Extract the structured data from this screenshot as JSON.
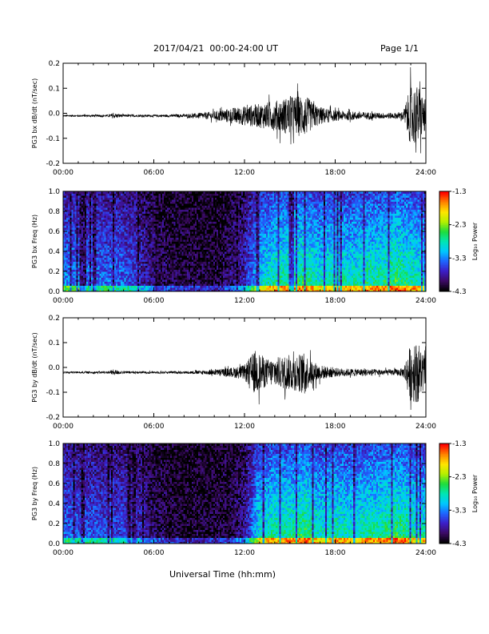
{
  "header": {
    "title": "2017/04/21  00:00-24:00 UT",
    "page": "Page 1/1"
  },
  "x_axis_title": "Universal Time (hh:mm)",
  "colorbar": {
    "title": "Log₁₀ Power",
    "tick_labels": [
      "-1.3",
      "-2.3",
      "-3.3",
      "-4.3"
    ],
    "range": [
      -4.3,
      -1.3
    ],
    "colors": [
      "#000000",
      "#3c0a64",
      "#3c1ec8",
      "#1e64ff",
      "#00c8ff",
      "#00e6b4",
      "#1edc3c",
      "#b4f000",
      "#ffe600",
      "#ff8200",
      "#ff0000"
    ]
  },
  "chart_data": [
    {
      "type": "line",
      "ylabel": "PG3 bx dB/dt (nT/sec)",
      "x_ticks": [
        "00:00",
        "06:00",
        "12:00",
        "18:00",
        "24:00"
      ],
      "y_ticks": [
        "0.2",
        "0.1",
        "0.0",
        "-0.1",
        "-0.2"
      ],
      "xlim": [
        0,
        24
      ],
      "ylim": [
        -0.2,
        0.2
      ],
      "envelope_hours": [
        0,
        2,
        3,
        3.3,
        4,
        6,
        8,
        9,
        10,
        11,
        12,
        13,
        14,
        15,
        16,
        16.5,
        17,
        18,
        19,
        20,
        21,
        22,
        22.5,
        23,
        23.5,
        24
      ],
      "envelope_amp": [
        0.006,
        0.007,
        0.008,
        0.018,
        0.008,
        0.007,
        0.01,
        0.018,
        0.03,
        0.05,
        0.065,
        0.08,
        0.1,
        0.13,
        0.14,
        0.09,
        0.06,
        0.035,
        0.03,
        0.025,
        0.02,
        0.02,
        0.03,
        0.2,
        0.2,
        0.1
      ],
      "offset": -0.01
    },
    {
      "type": "heatmap",
      "ylabel": "PG3 bx Freq (Hz)",
      "x_ticks": [
        "00:00",
        "06:00",
        "12:00",
        "18:00",
        "24:00"
      ],
      "y_ticks": [
        "1.0",
        "0.8",
        "0.6",
        "0.4",
        "0.2",
        "0.0"
      ],
      "xlim": [
        0,
        24
      ],
      "ylim": [
        0,
        1.0
      ],
      "zlim": [
        -4.3,
        -1.3
      ],
      "activity_hours": [
        0,
        4,
        5,
        6,
        8,
        10,
        11,
        12,
        13,
        14,
        15,
        16,
        17,
        18,
        19,
        20,
        21,
        22,
        23,
        24
      ],
      "activity_level": [
        0.35,
        0.3,
        0.22,
        0.12,
        0.06,
        0.05,
        0.1,
        0.2,
        0.45,
        0.55,
        0.55,
        0.58,
        0.5,
        0.55,
        0.5,
        0.55,
        0.55,
        0.6,
        0.55,
        0.5
      ]
    },
    {
      "type": "line",
      "ylabel": "PG3 by dB/dt (nT/sec)",
      "x_ticks": [
        "00:00",
        "06:00",
        "12:00",
        "18:00",
        "24:00"
      ],
      "y_ticks": [
        "0.2",
        "0.1",
        "0.0",
        "-0.1",
        "-0.2"
      ],
      "xlim": [
        0,
        24
      ],
      "ylim": [
        -0.2,
        0.2
      ],
      "envelope_hours": [
        0,
        2,
        3,
        3.3,
        4,
        6,
        8,
        9,
        10,
        11,
        12,
        12.7,
        13.5,
        14,
        15,
        16,
        16.5,
        17,
        18,
        19,
        20,
        21,
        22,
        22.5,
        23,
        23.5,
        24
      ],
      "envelope_amp": [
        0.006,
        0.007,
        0.008,
        0.02,
        0.008,
        0.007,
        0.008,
        0.012,
        0.018,
        0.03,
        0.05,
        0.15,
        0.09,
        0.1,
        0.12,
        0.13,
        0.08,
        0.05,
        0.03,
        0.025,
        0.025,
        0.02,
        0.02,
        0.03,
        0.2,
        0.2,
        0.1
      ],
      "offset": -0.02
    },
    {
      "type": "heatmap",
      "ylabel": "PG3 by Freq (Hz)",
      "x_ticks": [
        "00:00",
        "06:00",
        "12:00",
        "18:00",
        "24:00"
      ],
      "y_ticks": [
        "1.0",
        "0.8",
        "0.6",
        "0.4",
        "0.2",
        "0.0"
      ],
      "xlim": [
        0,
        24
      ],
      "ylim": [
        0,
        1.0
      ],
      "zlim": [
        -4.3,
        -1.3
      ],
      "activity_hours": [
        0,
        4,
        5,
        6,
        8,
        10,
        11,
        12,
        13,
        14,
        15,
        16,
        17,
        18,
        19,
        20,
        21,
        22,
        23,
        24
      ],
      "activity_level": [
        0.3,
        0.25,
        0.2,
        0.1,
        0.05,
        0.05,
        0.08,
        0.15,
        0.5,
        0.55,
        0.55,
        0.6,
        0.5,
        0.55,
        0.5,
        0.55,
        0.55,
        0.6,
        0.55,
        0.5
      ]
    }
  ]
}
